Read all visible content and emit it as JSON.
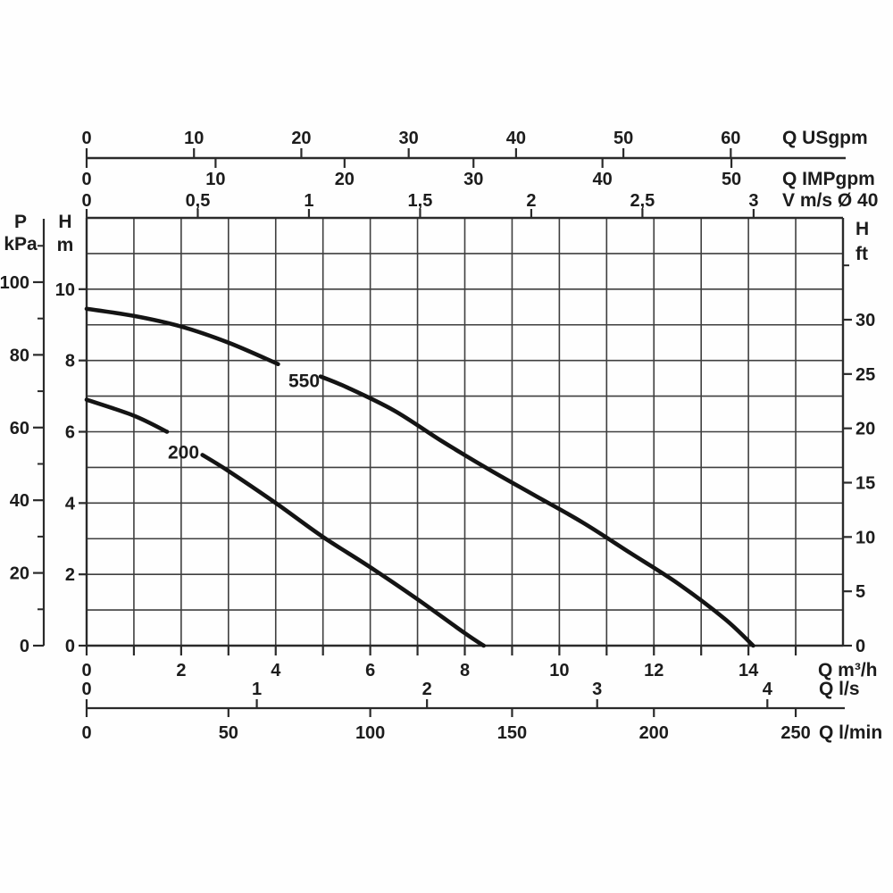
{
  "colors": {
    "background": "#fefefe",
    "grid": "#3f3f3f",
    "axis": "#2a2a2a",
    "curve": "#141414",
    "text": "#1c1c1c"
  },
  "chart_data": {
    "type": "line",
    "title": "",
    "grid": "on",
    "xlim_m3h": [
      0,
      16
    ],
    "ylim_m": [
      0,
      12
    ],
    "axes": {
      "top": [
        {
          "id": "usgpm",
          "unit": "Q USgpm",
          "values": [
            0,
            10,
            20,
            30,
            40,
            50,
            60
          ],
          "labels": [
            "0",
            "10",
            "20",
            "30",
            "40",
            "50",
            "60"
          ],
          "to_m3h": 0.2271
        },
        {
          "id": "impgpm",
          "unit": "Q IMPgpm",
          "values": [
            0,
            10,
            20,
            30,
            40,
            50
          ],
          "labels": [
            "0",
            "10",
            "20",
            "30",
            "40",
            "50"
          ],
          "to_m3h": 0.2728
        },
        {
          "id": "velocity",
          "unit": "V m/s Ø 40",
          "values": [
            0,
            0.5,
            1,
            1.5,
            2,
            2.5,
            3
          ],
          "labels": [
            "0",
            "0,5",
            "1",
            "1,5",
            "2",
            "2,5",
            "3"
          ],
          "to_m3h": 4.703
        }
      ],
      "left": [
        {
          "id": "pressure",
          "header": [
            "P",
            "kPa"
          ],
          "values": [
            0,
            20,
            40,
            60,
            80,
            100
          ],
          "labels": [
            "0",
            "20",
            "40",
            "60",
            "80",
            "100"
          ],
          "minors": [
            10,
            30,
            50,
            70,
            90,
            110
          ],
          "to_m": 0.10197
        },
        {
          "id": "head-m",
          "header": [
            "H",
            "m"
          ],
          "values": [
            0,
            2,
            4,
            6,
            8,
            10
          ],
          "labels": [
            "0",
            "2",
            "4",
            "6",
            "8",
            "10"
          ],
          "to_m": 1
        }
      ],
      "right": {
        "id": "head-ft",
        "header": [
          "H",
          "ft"
        ],
        "values": [
          0,
          5,
          10,
          15,
          20,
          25,
          30
        ],
        "labels": [
          "0",
          "5",
          "10",
          "15",
          "20",
          "25",
          "30"
        ],
        "minors": [
          35
        ],
        "to_m": 0.3048
      },
      "bottom": [
        {
          "id": "m3h",
          "unit": "Q m³/h",
          "values": [
            0,
            2,
            4,
            6,
            8,
            10,
            12,
            14
          ],
          "labels": [
            "0",
            "2",
            "4",
            "6",
            "8",
            "10",
            "12",
            "14"
          ],
          "minors": [
            0,
            1,
            2,
            3,
            4,
            5,
            6,
            7,
            8,
            9,
            10,
            11,
            12,
            13,
            14,
            15
          ],
          "to_m3h": 1
        },
        {
          "id": "ls",
          "unit": "Q l/s",
          "values": [
            0,
            1,
            2,
            3,
            4
          ],
          "labels": [
            "0",
            "1",
            "2",
            "3",
            "4"
          ],
          "to_m3h": 3.6
        },
        {
          "id": "lmin",
          "unit": "Q l/min",
          "values": [
            0,
            50,
            100,
            150,
            200,
            250
          ],
          "labels": [
            "0",
            "50",
            "100",
            "150",
            "200",
            "250"
          ],
          "to_m3h": 0.06
        }
      ]
    },
    "series": [
      {
        "name": "550",
        "label": "550",
        "label_pos": {
          "q": 4.6,
          "h": 7.45
        },
        "segments": [
          [
            [
              0,
              9.45
            ],
            [
              1,
              9.25
            ],
            [
              2,
              8.95
            ],
            [
              3,
              8.5
            ],
            [
              4.05,
              7.9
            ]
          ],
          [
            [
              4.95,
              7.55
            ],
            [
              5.5,
              7.25
            ],
            [
              6.5,
              6.6
            ],
            [
              7.5,
              5.75
            ],
            [
              8.5,
              4.95
            ],
            [
              9.5,
              4.2
            ],
            [
              10.5,
              3.45
            ],
            [
              11.5,
              2.6
            ],
            [
              12.5,
              1.75
            ],
            [
              13.5,
              0.75
            ],
            [
              14.1,
              0
            ]
          ]
        ]
      },
      {
        "name": "200",
        "label": "200",
        "label_pos": {
          "q": 2.05,
          "h": 5.45
        },
        "segments": [
          [
            [
              0,
              6.9
            ],
            [
              1,
              6.45
            ],
            [
              1.7,
              6.0
            ]
          ],
          [
            [
              2.45,
              5.35
            ],
            [
              3,
              4.9
            ],
            [
              4,
              4.0
            ],
            [
              5,
              3.05
            ],
            [
              6,
              2.2
            ],
            [
              7,
              1.3
            ],
            [
              8,
              0.35
            ],
            [
              8.4,
              0
            ]
          ]
        ]
      }
    ]
  }
}
